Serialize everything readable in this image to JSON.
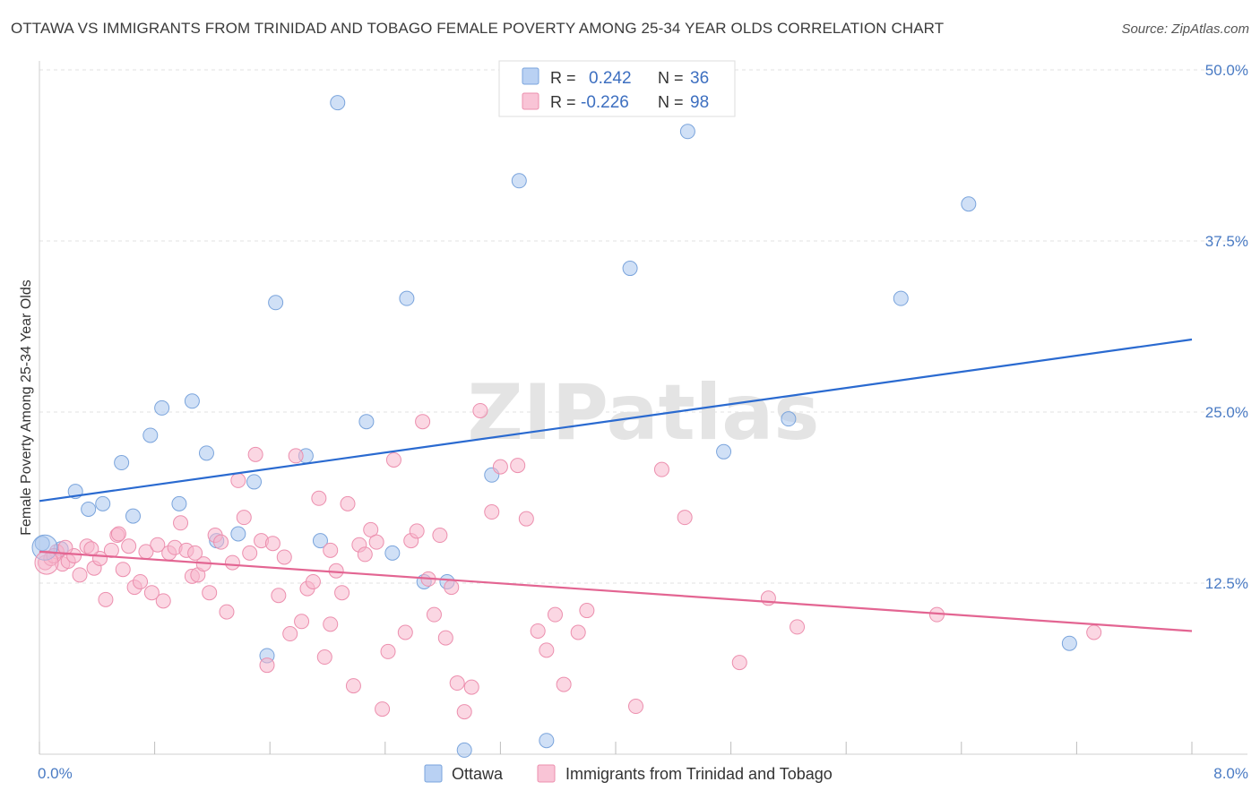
{
  "title": "OTTAWA VS IMMIGRANTS FROM TRINIDAD AND TOBAGO FEMALE POVERTY AMONG 25-34 YEAR OLDS CORRELATION CHART",
  "source": "Source: ZipAtlas.com",
  "watermark": "ZIPatlas",
  "chart_data": {
    "type": "scatter",
    "ylabel": "Female Poverty Among 25-34 Year Olds",
    "xlim": [
      0,
      8
    ],
    "ylim": [
      0,
      50
    ],
    "x_tick_labels": [
      "0.0%",
      "8.0%"
    ],
    "y_ticks": [
      12.5,
      25.0,
      37.5,
      50.0
    ],
    "y_tick_labels": [
      "12.5%",
      "25.0%",
      "37.5%",
      "50.0%"
    ],
    "grid": true,
    "legend_stats": [
      {
        "r_label": "R =",
        "r_value": "0.242",
        "n_label": "N =",
        "n_value": "36"
      },
      {
        "r_label": "R =",
        "r_value": "-0.226",
        "n_label": "N =",
        "n_value": "98"
      }
    ],
    "series": [
      {
        "name": "Ottawa",
        "color": "#a9c6ee",
        "stroke": "#7aa4dc",
        "trend_color": "#2a6ad0",
        "trend": [
          [
            0,
            18.5
          ],
          [
            8,
            30.3
          ]
        ],
        "points": [
          [
            0.02,
            15.4
          ],
          [
            0.15,
            15.0
          ],
          [
            0.25,
            19.2
          ],
          [
            0.34,
            17.9
          ],
          [
            0.44,
            18.3
          ],
          [
            0.57,
            21.3
          ],
          [
            0.65,
            17.4
          ],
          [
            0.77,
            23.3
          ],
          [
            0.85,
            25.3
          ],
          [
            0.97,
            18.3
          ],
          [
            1.06,
            25.8
          ],
          [
            1.16,
            22.0
          ],
          [
            1.23,
            15.6
          ],
          [
            1.38,
            16.1
          ],
          [
            1.49,
            19.9
          ],
          [
            1.58,
            7.2
          ],
          [
            1.64,
            33.0
          ],
          [
            1.85,
            21.8
          ],
          [
            1.95,
            15.6
          ],
          [
            2.07,
            47.6
          ],
          [
            2.27,
            24.3
          ],
          [
            2.45,
            14.7
          ],
          [
            2.55,
            33.3
          ],
          [
            2.67,
            12.6
          ],
          [
            2.83,
            12.6
          ],
          [
            2.95,
            0.3
          ],
          [
            3.14,
            20.4
          ],
          [
            3.33,
            41.9
          ],
          [
            3.52,
            1.0
          ],
          [
            4.1,
            35.5
          ],
          [
            4.5,
            45.5
          ],
          [
            4.75,
            22.1
          ],
          [
            5.2,
            24.5
          ],
          [
            5.98,
            33.3
          ],
          [
            6.45,
            40.2
          ],
          [
            7.15,
            8.1
          ]
        ]
      },
      {
        "name": "Immigrants from Trinidad and Tobago",
        "color": "#f7b6cc",
        "stroke": "#ec8fae",
        "trend_color": "#e36592",
        "trend": [
          [
            0,
            14.8
          ],
          [
            8,
            9.0
          ]
        ],
        "points": [
          [
            0.04,
            14.0
          ],
          [
            0.08,
            14.3
          ],
          [
            0.12,
            14.8
          ],
          [
            0.16,
            13.9
          ],
          [
            0.2,
            14.1
          ],
          [
            0.24,
            14.5
          ],
          [
            0.28,
            13.1
          ],
          [
            0.33,
            15.2
          ],
          [
            0.38,
            13.6
          ],
          [
            0.42,
            14.3
          ],
          [
            0.46,
            11.3
          ],
          [
            0.5,
            14.9
          ],
          [
            0.54,
            16.0
          ],
          [
            0.58,
            13.5
          ],
          [
            0.62,
            15.2
          ],
          [
            0.66,
            12.2
          ],
          [
            0.7,
            12.6
          ],
          [
            0.74,
            14.8
          ],
          [
            0.78,
            11.8
          ],
          [
            0.82,
            15.3
          ],
          [
            0.86,
            11.2
          ],
          [
            0.9,
            14.7
          ],
          [
            0.94,
            15.1
          ],
          [
            0.98,
            16.9
          ],
          [
            1.02,
            14.9
          ],
          [
            1.06,
            13.0
          ],
          [
            1.1,
            13.1
          ],
          [
            1.14,
            13.9
          ],
          [
            1.18,
            11.8
          ],
          [
            1.22,
            16.0
          ],
          [
            1.26,
            15.5
          ],
          [
            1.3,
            10.4
          ],
          [
            1.34,
            14.0
          ],
          [
            1.38,
            20.0
          ],
          [
            1.42,
            17.3
          ],
          [
            1.46,
            14.7
          ],
          [
            1.5,
            21.9
          ],
          [
            1.54,
            15.6
          ],
          [
            1.58,
            6.5
          ],
          [
            1.62,
            15.4
          ],
          [
            1.66,
            11.6
          ],
          [
            1.7,
            14.4
          ],
          [
            1.74,
            8.8
          ],
          [
            1.78,
            21.8
          ],
          [
            1.82,
            9.7
          ],
          [
            1.86,
            12.1
          ],
          [
            1.9,
            12.6
          ],
          [
            1.94,
            18.7
          ],
          [
            1.98,
            7.1
          ],
          [
            2.02,
            9.5
          ],
          [
            2.06,
            13.4
          ],
          [
            2.1,
            11.8
          ],
          [
            2.14,
            18.3
          ],
          [
            2.18,
            5.0
          ],
          [
            2.22,
            15.3
          ],
          [
            2.26,
            14.6
          ],
          [
            2.3,
            16.4
          ],
          [
            2.34,
            15.5
          ],
          [
            2.38,
            3.3
          ],
          [
            2.42,
            7.5
          ],
          [
            2.46,
            21.5
          ],
          [
            2.54,
            8.9
          ],
          [
            2.58,
            15.6
          ],
          [
            2.62,
            16.3
          ],
          [
            2.66,
            24.3
          ],
          [
            2.7,
            12.8
          ],
          [
            2.74,
            10.2
          ],
          [
            2.78,
            16.0
          ],
          [
            2.82,
            8.5
          ],
          [
            2.86,
            12.2
          ],
          [
            2.9,
            5.2
          ],
          [
            2.95,
            3.1
          ],
          [
            3.0,
            4.9
          ],
          [
            3.06,
            25.1
          ],
          [
            3.14,
            17.7
          ],
          [
            3.2,
            21.0
          ],
          [
            3.32,
            21.1
          ],
          [
            3.38,
            17.2
          ],
          [
            3.46,
            9.0
          ],
          [
            3.52,
            7.6
          ],
          [
            3.58,
            10.2
          ],
          [
            3.64,
            5.1
          ],
          [
            3.74,
            8.9
          ],
          [
            3.8,
            10.5
          ],
          [
            4.14,
            3.5
          ],
          [
            4.32,
            20.8
          ],
          [
            4.48,
            17.3
          ],
          [
            4.86,
            6.7
          ],
          [
            5.06,
            11.4
          ],
          [
            5.26,
            9.3
          ],
          [
            6.23,
            10.2
          ],
          [
            7.32,
            8.9
          ],
          [
            0.1,
            14.5
          ],
          [
            0.55,
            16.1
          ],
          [
            1.08,
            14.7
          ],
          [
            2.02,
            14.9
          ],
          [
            0.18,
            15.1
          ],
          [
            0.36,
            15.0
          ]
        ]
      }
    ]
  }
}
